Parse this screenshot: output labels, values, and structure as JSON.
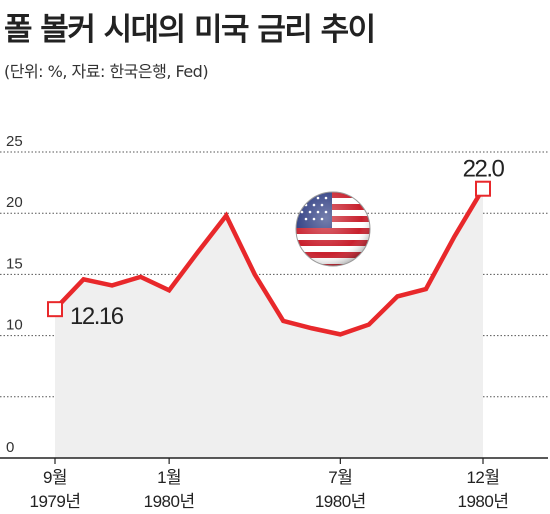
{
  "chart_data": {
    "type": "area",
    "title": "폴 볼커 시대의 미국 금리 추이",
    "subtitle": "(단위: %, 자료: 한국은행, Fed)",
    "x": [
      "1979-09",
      "1979-10",
      "1979-11",
      "1979-12",
      "1980-01",
      "1980-02",
      "1980-03",
      "1980-04",
      "1980-05",
      "1980-06",
      "1980-07",
      "1980-08",
      "1980-09",
      "1980-10",
      "1980-11",
      "1980-12"
    ],
    "values": [
      12.16,
      14.6,
      14.1,
      14.8,
      13.7,
      16.8,
      19.8,
      15.0,
      11.2,
      10.6,
      10.1,
      10.9,
      13.2,
      13.8,
      18.1,
      22.0
    ],
    "ylim": [
      0,
      25
    ],
    "yticks": [
      0,
      5,
      10,
      15,
      20,
      25
    ],
    "ytick_labels": [
      "0",
      "",
      "10",
      "15",
      "20",
      "25"
    ],
    "xtick_labels": [
      {
        "index": 0,
        "line1": "9월",
        "line2": "1979년"
      },
      {
        "index": 4,
        "line1": "1월",
        "line2": "1980년"
      },
      {
        "index": 10,
        "line1": "7월",
        "line2": "1980년"
      },
      {
        "index": 15,
        "line1": "12월",
        "line2": "1980년"
      }
    ],
    "annotations": [
      {
        "index": 0,
        "text": "12.16"
      },
      {
        "index": 15,
        "text": "22.0"
      }
    ],
    "grid": true,
    "line_color": "#e8282b",
    "fill_color": "#efefef"
  },
  "decoration": {
    "icon": "us-flag-icon"
  }
}
